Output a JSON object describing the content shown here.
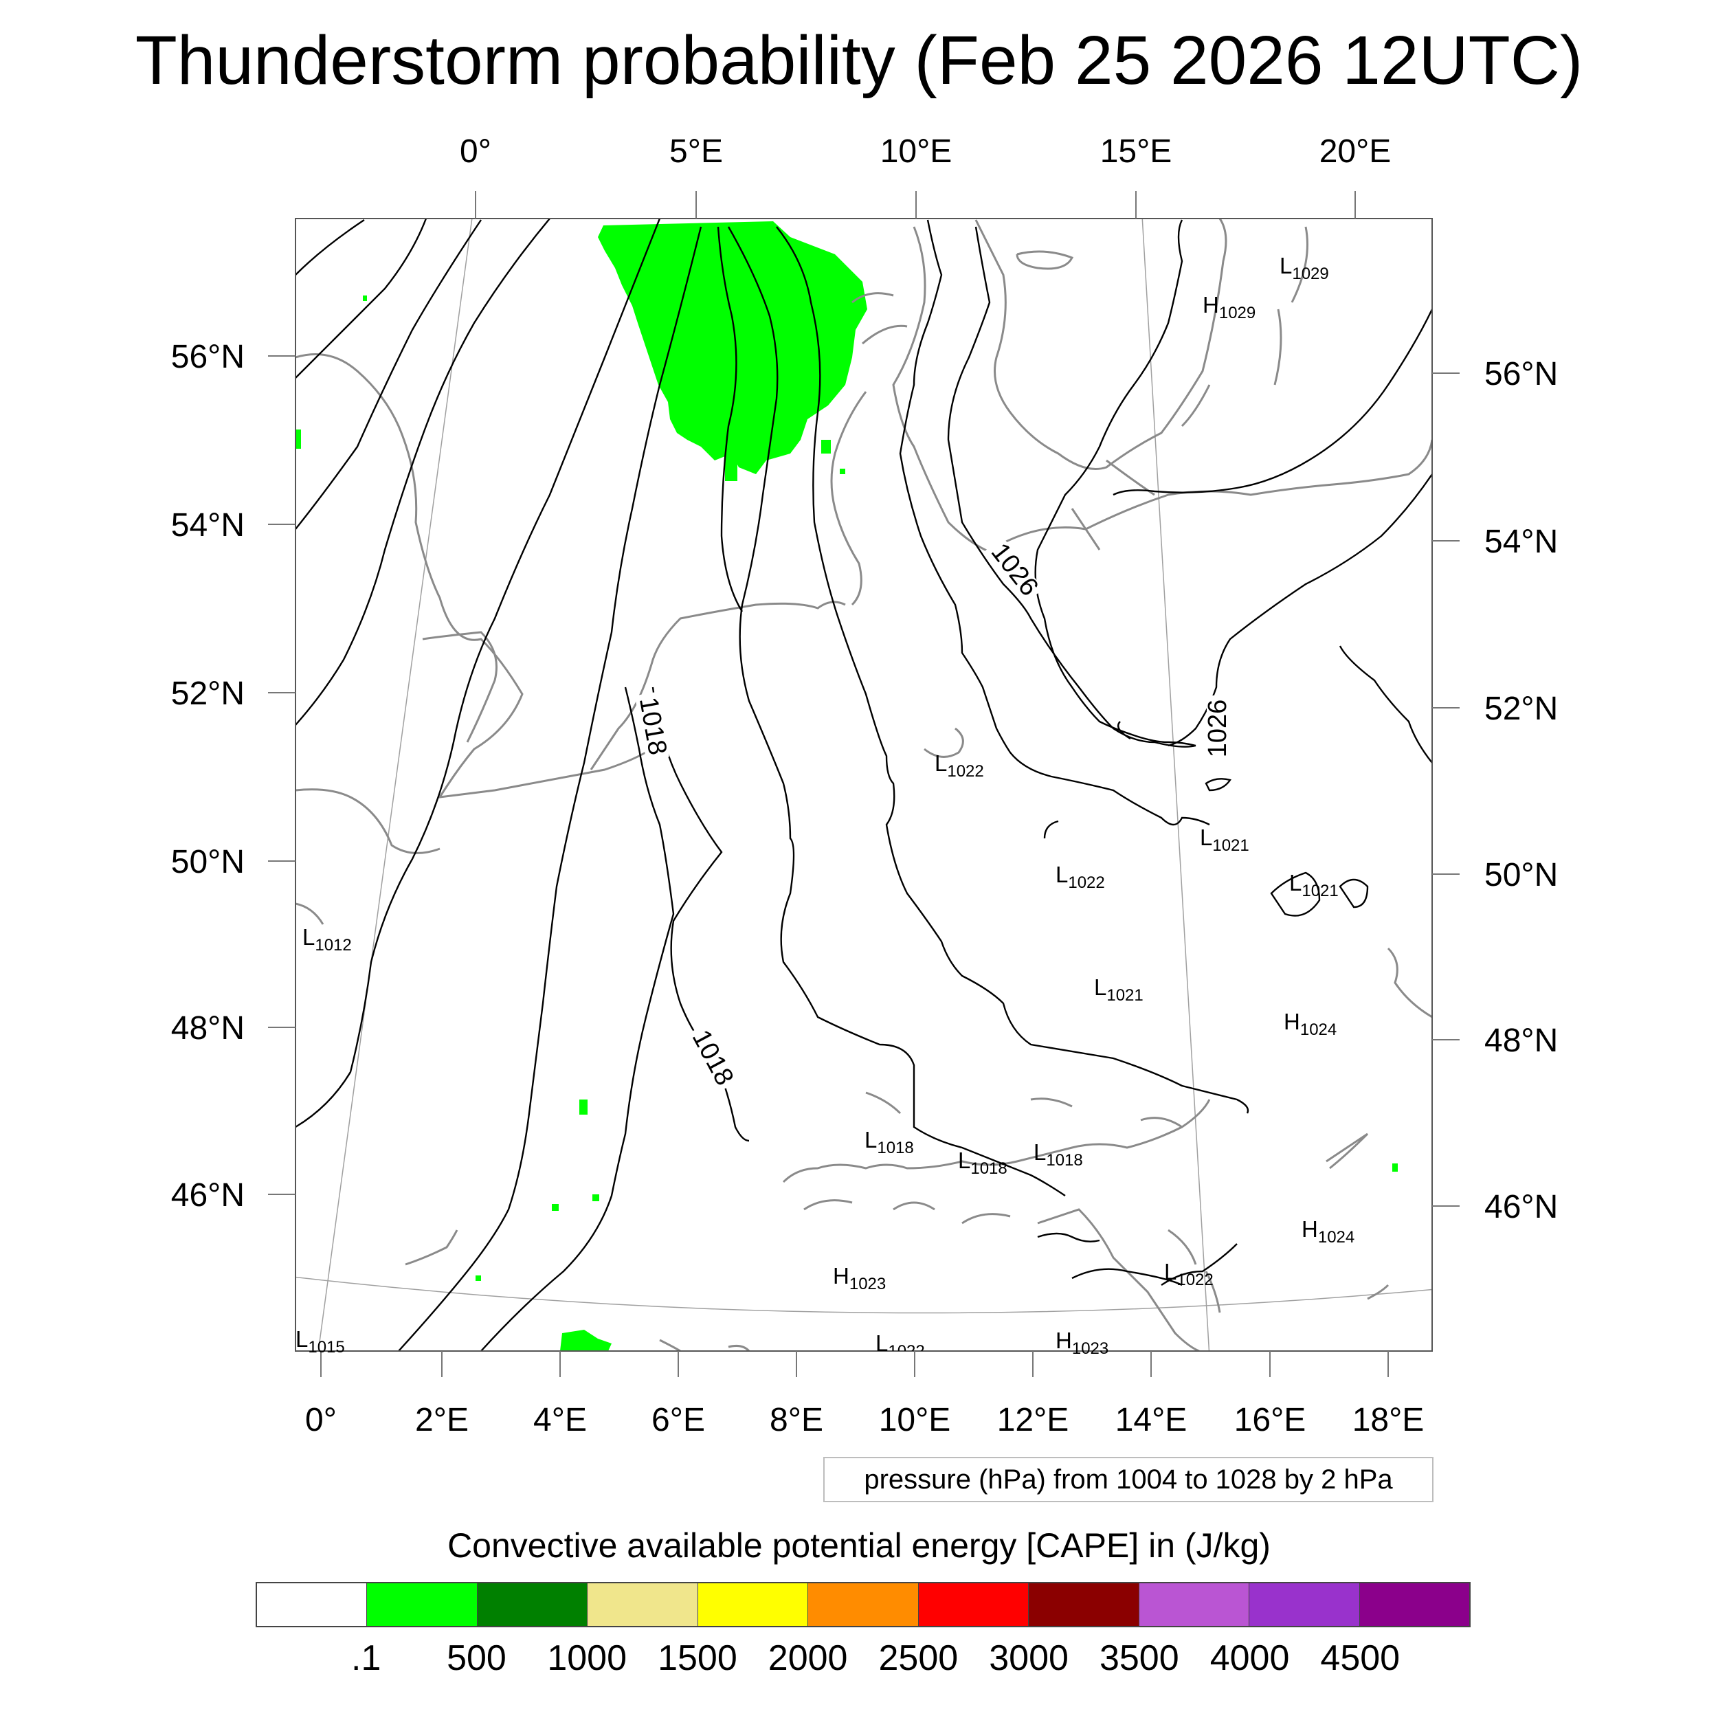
{
  "title": "Thunderstorm probability (Feb 25 2026 12UTC)",
  "top_lon_labels": [
    "0°",
    "5°E",
    "10°E",
    "15°E",
    "20°E"
  ],
  "bottom_lon_labels": [
    "0°",
    "2°E",
    "4°E",
    "6°E",
    "8°E",
    "10°E",
    "12°E",
    "14°E",
    "16°E",
    "18°E"
  ],
  "left_lat_labels": [
    "56°N",
    "54°N",
    "52°N",
    "50°N",
    "48°N",
    "46°N"
  ],
  "right_lat_labels": [
    "56°N",
    "54°N",
    "52°N",
    "50°N",
    "48°N",
    "46°N"
  ],
  "pressure_centers": [
    {
      "type": "L",
      "value": "1029"
    },
    {
      "type": "H",
      "value": "1029"
    },
    {
      "type": "L",
      "value": "1022"
    },
    {
      "type": "L",
      "value": "1021"
    },
    {
      "type": "L",
      "value": "1022"
    },
    {
      "type": "L",
      "value": "1021"
    },
    {
      "type": "L",
      "value": "1012"
    },
    {
      "type": "L",
      "value": "1021"
    },
    {
      "type": "H",
      "value": "1024"
    },
    {
      "type": "L",
      "value": "1018"
    },
    {
      "type": "L",
      "value": "1018"
    },
    {
      "type": "L",
      "value": "1018"
    },
    {
      "type": "H",
      "value": "1024"
    },
    {
      "type": "H",
      "value": "1023"
    },
    {
      "type": "L",
      "value": "1022"
    },
    {
      "type": "L",
      "value": "1015"
    },
    {
      "type": "H",
      "value": "1023"
    },
    {
      "type": "L",
      "value": "1022"
    }
  ],
  "isobar_labels": [
    "1018",
    "1018",
    "1026",
    "1026"
  ],
  "contour_info": "pressure (hPa) from 1004 to 1028 by 2 hPa",
  "colorbar": {
    "title": "Convective available potential energy [CAPE] in (J/kg)",
    "colors": [
      "#ffffff",
      "#00ff00",
      "#008000",
      "#f0e68c",
      "#ffff00",
      "#ff8c00",
      "#ff0000",
      "#8b0000",
      "#ba55d3",
      "#9932cc",
      "#8b008b"
    ],
    "labels": [
      ".1",
      "500",
      "1000",
      "1500",
      "2000",
      "2500",
      "3000",
      "3500",
      "4000",
      "4500"
    ]
  }
}
